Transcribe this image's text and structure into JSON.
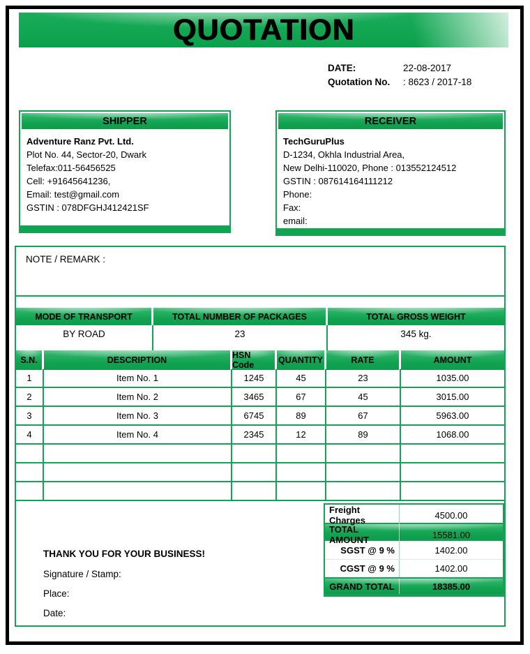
{
  "title": "QUOTATION",
  "meta": {
    "date_label": "DATE:",
    "date_value": "22-08-2017",
    "quotation_no_label": "Quotation No.",
    "quotation_no_value": ": 8623 / 2017-18"
  },
  "shipper": {
    "header": "SHIPPER",
    "name": "Adventure Ranz Pvt. Ltd.",
    "lines": [
      "Plot No. 44, Sector-20, Dwark",
      "Telefax:011-56456525",
      "Cell:   +91645641236,",
      "Email: test@gmail.com",
      "GSTIN : 078DFGHJ412421SF"
    ]
  },
  "receiver": {
    "header": "RECEIVER",
    "name": "TechGuruPlus",
    "lines": [
      "D-1234, Okhla Industrial Area,",
      "New Delhi-110020,  Phone : 013552124512",
      "GSTIN : 087614164111212",
      "Phone:",
      "Fax:",
      "email:"
    ]
  },
  "note": {
    "label": "NOTE / REMARK :"
  },
  "transport": {
    "headers": [
      "MODE OF TRANSPORT",
      "TOTAL NUMBER OF PACKAGES",
      "TOTAL GROSS WEIGHT"
    ],
    "values": [
      "BY ROAD",
      "23",
      "345 kg."
    ]
  },
  "items": {
    "headers": [
      "S.N.",
      "DESCRIPTION",
      "HSN Code",
      "QUANTITY",
      "RATE",
      "AMOUNT"
    ],
    "rows": [
      {
        "sn": "1",
        "description": "Item No. 1",
        "hsn": "1245",
        "quantity": "45",
        "rate": "23",
        "amount": "1035.00"
      },
      {
        "sn": "2",
        "description": "Item No. 2",
        "hsn": "3465",
        "quantity": "67",
        "rate": "45",
        "amount": "3015.00"
      },
      {
        "sn": "3",
        "description": "Item No. 3",
        "hsn": "6745",
        "quantity": "89",
        "rate": "67",
        "amount": "5963.00"
      },
      {
        "sn": "4",
        "description": "Item No. 4",
        "hsn": "2345",
        "quantity": "12",
        "rate": "89",
        "amount": "1068.00"
      }
    ]
  },
  "summary": {
    "freight_label": "Freight Charges",
    "freight_value": "4500.00",
    "total_label": "TOTAL AMOUNT",
    "total_value": "15581.00",
    "sgst_label": "SGST @ 9 %",
    "sgst_value": "1402.00",
    "cgst_label": "CGST @ 9 %",
    "cgst_value": "1402.00",
    "grand_label": "GRAND TOTAL",
    "grand_value": "18385.00"
  },
  "footer": {
    "thanks": "THANK YOU FOR YOUR BUSINESS!",
    "signature": "Signature / Stamp:",
    "place": "Place:",
    "date": "Date:"
  },
  "colors": {
    "green": "#17a156",
    "banner_green": "#0ca04d"
  }
}
